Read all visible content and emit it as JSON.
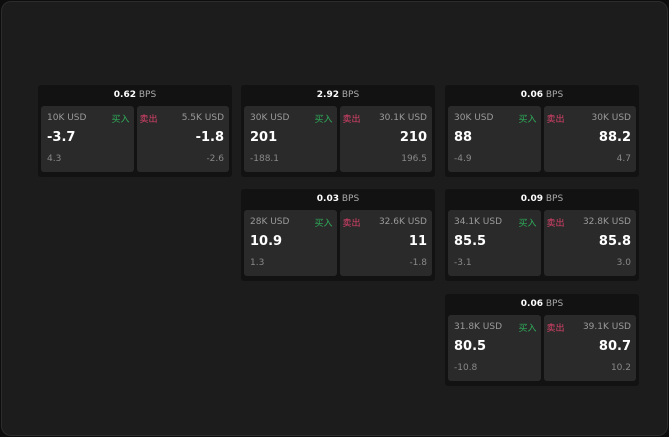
{
  "labels": {
    "buy": "买入",
    "sell": "卖出",
    "bps": "BPS"
  },
  "colors": {
    "buy": "#2fae5a",
    "sell": "#d9416a"
  },
  "cards": [
    {
      "bps": "0.62",
      "buy": {
        "size": "10K USD",
        "price": "-3.7",
        "change": "4.3"
      },
      "sell": {
        "size": "5.5K USD",
        "price": "-1.8",
        "change": "-2.6"
      }
    },
    {
      "bps": "2.92",
      "buy": {
        "size": "30K USD",
        "price": "201",
        "change": "-188.1"
      },
      "sell": {
        "size": "30.1K USD",
        "price": "210",
        "change": "196.5"
      }
    },
    {
      "bps": "0.06",
      "buy": {
        "size": "30K USD",
        "price": "88",
        "change": "-4.9"
      },
      "sell": {
        "size": "30K USD",
        "price": "88.2",
        "change": "4.7"
      }
    },
    {
      "bps": "0.03",
      "buy": {
        "size": "28K USD",
        "price": "10.9",
        "change": "1.3"
      },
      "sell": {
        "size": "32.6K USD",
        "price": "11",
        "change": "-1.8"
      }
    },
    {
      "bps": "0.09",
      "buy": {
        "size": "34.1K USD",
        "price": "85.5",
        "change": "-3.1"
      },
      "sell": {
        "size": "32.8K USD",
        "price": "85.8",
        "change": "3.0"
      }
    },
    {
      "bps": "0.06",
      "buy": {
        "size": "31.8K USD",
        "price": "80.5",
        "change": "-10.8"
      },
      "sell": {
        "size": "39.1K USD",
        "price": "80.7",
        "change": "10.2"
      }
    }
  ]
}
